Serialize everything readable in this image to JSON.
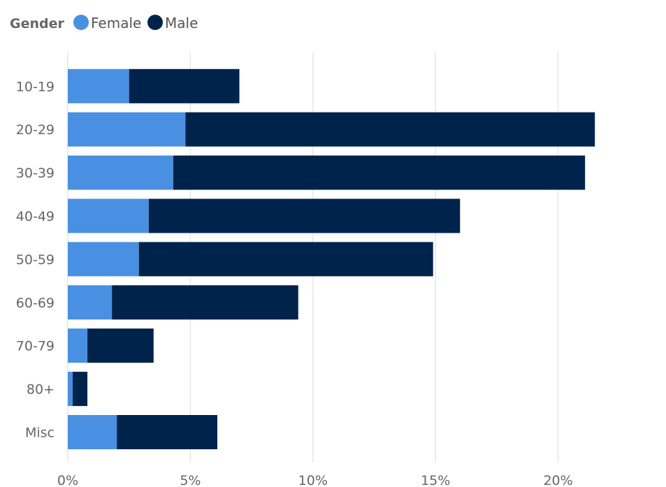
{
  "chart_data": {
    "type": "bar",
    "orientation": "horizontal",
    "stacked": true,
    "title": "",
    "xlabel": "",
    "ylabel": "",
    "legend": {
      "title": "Gender",
      "placement": "top-left",
      "entries": [
        "Female",
        "Male"
      ]
    },
    "categories": [
      "10-19",
      "20-29",
      "30-39",
      "40-49",
      "50-59",
      "60-69",
      "70-79",
      "80+",
      "Misc"
    ],
    "series": [
      {
        "name": "Female",
        "color": "#4a90e2",
        "values": [
          2.5,
          4.8,
          4.3,
          3.3,
          2.9,
          1.8,
          0.8,
          0.2,
          2.0
        ]
      },
      {
        "name": "Male",
        "color": "#00234b",
        "values": [
          4.5,
          16.7,
          16.8,
          12.7,
          12.0,
          7.6,
          2.7,
          0.6,
          4.1
        ]
      }
    ],
    "xlim": [
      0,
      25
    ],
    "xticks": [
      "0%",
      "5%",
      "10%",
      "15%",
      "20%"
    ],
    "xtick_values": [
      0,
      5,
      10,
      15,
      20
    ],
    "grid": true,
    "grid_color": "#e6e6e6"
  }
}
